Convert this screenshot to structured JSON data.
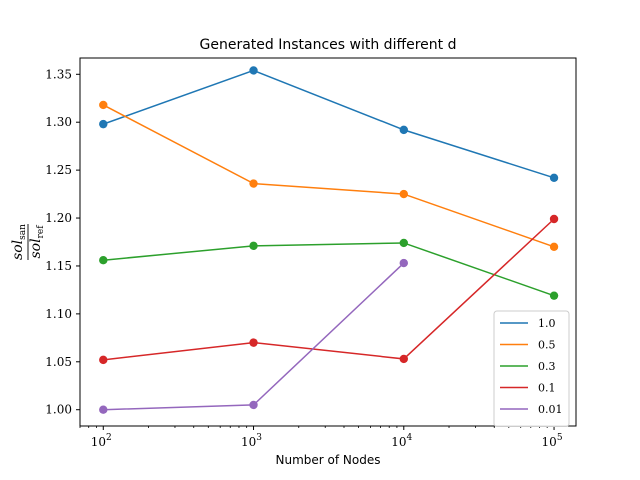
{
  "chart_data": {
    "type": "line",
    "title": "Generated Instances with different d",
    "xlabel": "Number of Nodes",
    "ylabel": "sol_san / sol_ref",
    "ylabel_parts": {
      "numerator_main": "sol",
      "numerator_sub": "san",
      "denominator_main": "sol",
      "denominator_sub": "ref"
    },
    "x_scale": "log",
    "x": [
      100,
      1000,
      10000,
      100000
    ],
    "x_tick_labels": [
      {
        "base": "10",
        "exp": "2"
      },
      {
        "base": "10",
        "exp": "3"
      },
      {
        "base": "10",
        "exp": "4"
      },
      {
        "base": "10",
        "exp": "5"
      }
    ],
    "xlim": [
      70,
      140000
    ],
    "ylim": [
      0.983,
      1.367
    ],
    "y_ticks": [
      "1.00",
      "1.05",
      "1.10",
      "1.15",
      "1.20",
      "1.25",
      "1.30",
      "1.35"
    ],
    "grid": false,
    "legend_position": "lower-right",
    "series": [
      {
        "name": "1.0",
        "color": "#1f77b4",
        "values": [
          1.298,
          1.354,
          1.292,
          1.242
        ]
      },
      {
        "name": "0.5",
        "color": "#ff7f0e",
        "values": [
          1.318,
          1.236,
          1.225,
          1.17
        ]
      },
      {
        "name": "0.3",
        "color": "#2ca02c",
        "values": [
          1.156,
          1.171,
          1.174,
          1.119
        ]
      },
      {
        "name": "0.1",
        "color": "#d62728",
        "values": [
          1.052,
          1.07,
          1.053,
          1.199
        ]
      },
      {
        "name": "0.01",
        "color": "#9467bd",
        "values": [
          1.0,
          1.005,
          1.153,
          null
        ]
      }
    ]
  }
}
